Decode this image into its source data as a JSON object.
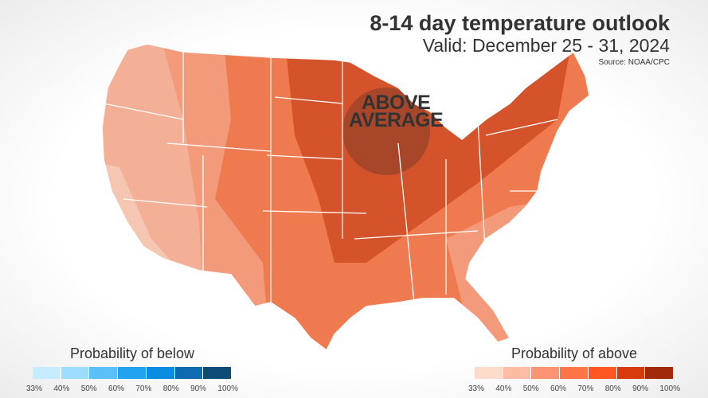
{
  "header": {
    "title": "8-14 day temperature outlook",
    "subtitle": "Valid: December 25 - 31, 2024",
    "source": "Source: NOAA/CPC"
  },
  "map": {
    "region_label_line1": "ABOVE",
    "region_label_line2": "AVERAGE",
    "region_label_line": "ABOVE AVERAGE"
  },
  "legend_below": {
    "title": "Probability of below",
    "colors": [
      "#c6ecff",
      "#9ddcfc",
      "#5bbffa",
      "#22a3ef",
      "#0a8ce0",
      "#0e6bb0",
      "#0d4b78"
    ],
    "ticks": [
      "33%",
      "40%",
      "50%",
      "60%",
      "70%",
      "80%",
      "90%",
      "100%"
    ]
  },
  "legend_above": {
    "title": "Probability of above",
    "colors": [
      "#fddccc",
      "#fcbba3",
      "#fc9474",
      "#fd7546",
      "#fe5722",
      "#d93a0b",
      "#a12a0c"
    ],
    "ticks": [
      "33%",
      "40%",
      "50%",
      "60%",
      "70%",
      "80%",
      "90%",
      "100%"
    ]
  }
}
